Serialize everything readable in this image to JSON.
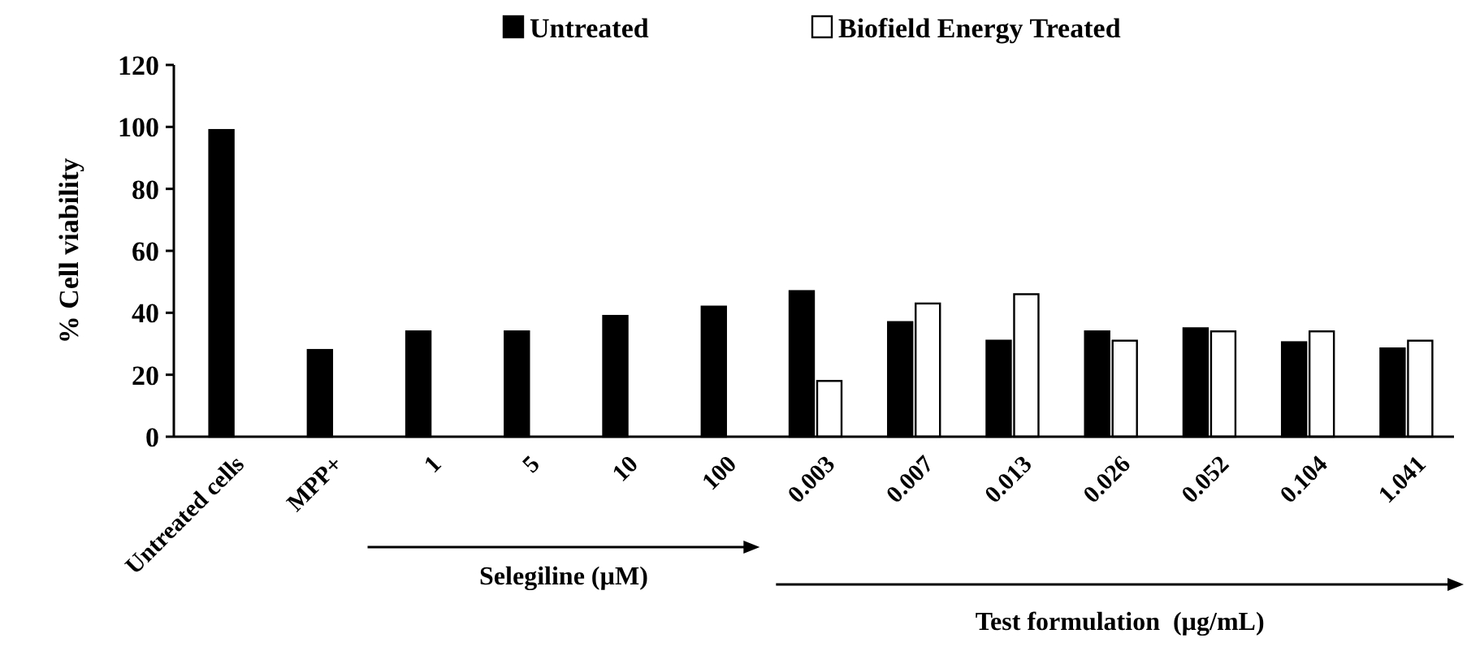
{
  "chart_data": {
    "type": "bar",
    "ylabel": "% Cell viability",
    "categories": [
      "Untreated cells",
      "MPP+",
      "1",
      "5",
      "10",
      "100",
      "0.003",
      "0.007",
      "0.013",
      "0.026",
      "0.052",
      "0.104",
      "1.041"
    ],
    "series": [
      {
        "name": "Untreated",
        "color": "#000000",
        "values": [
          99,
          28,
          34,
          34,
          39,
          42,
          47,
          37,
          31,
          34,
          35,
          30.5,
          28.5
        ]
      },
      {
        "name": "Biofield Energy Treated",
        "color": "#ffffff",
        "values": [
          null,
          null,
          null,
          null,
          null,
          null,
          18,
          43,
          46,
          31,
          34,
          34,
          31
        ]
      }
    ],
    "ylim": [
      0,
      120
    ],
    "yticks": [
      0,
      20,
      40,
      60,
      80,
      100,
      120
    ],
    "grid": false,
    "legend": "top",
    "annotations": [
      "Selegiline (µM)",
      "Test formulation  (µg/mL)"
    ]
  }
}
